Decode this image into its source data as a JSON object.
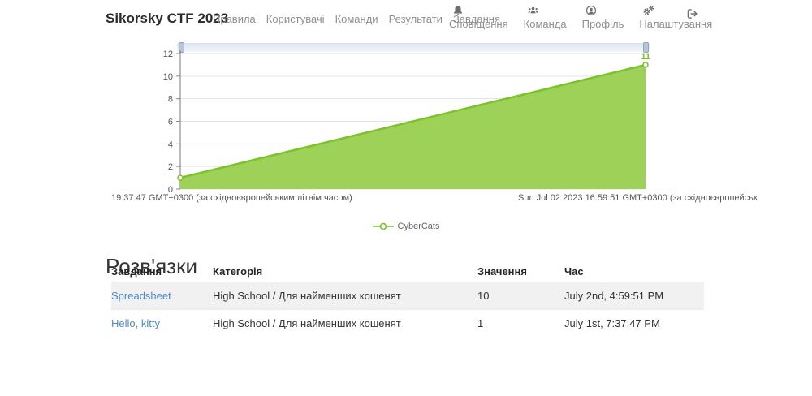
{
  "navbar": {
    "brand": "Sikorsky CTF 2023",
    "links": [
      "Правила",
      "Користувачі",
      "Команди",
      "Результати",
      "Завдання"
    ],
    "icon_items": [
      {
        "label": "Сповіщення",
        "icon": "bell-icon"
      },
      {
        "label": "Команда",
        "icon": "team-icon"
      },
      {
        "label": "Профіль",
        "icon": "profile-icon"
      },
      {
        "label": "Налаштування",
        "icon": "settings-icon"
      }
    ],
    "logout": {
      "icon": "logout-icon"
    }
  },
  "chart_data": {
    "type": "area",
    "title": "",
    "series": [
      {
        "name": "CyberCats",
        "line_color": "#7cc22c",
        "fill_color": "#9ed158",
        "points": [
          {
            "x": "Jul 01 2023 19:37:47",
            "y": 1
          },
          {
            "x": "Jul 02 2023 16:59:51",
            "y": 11
          }
        ]
      }
    ],
    "ylim": [
      0,
      12
    ],
    "y_ticks": [
      0,
      2,
      4,
      6,
      8,
      10,
      12
    ],
    "grid": true,
    "x_axis_labels": {
      "start": "19:37:47 GMT+0300 (за східноєвропейським літнім часом)",
      "end": "Sun Jul 02 2023 16:59:51 GMT+0300 (за східноєвропейськ"
    },
    "end_point_label": "11",
    "legend": {
      "position": "bottom-center",
      "entries": [
        "CyberCats"
      ]
    }
  },
  "solves": {
    "heading": "Розв'язки",
    "columns": [
      "Завдання",
      "Категорія",
      "Значення",
      "Час"
    ],
    "rows": [
      {
        "task": "Spreadsheet",
        "category": "High School / Для найменших кошенят",
        "value": "10",
        "time": "July 2nd, 4:59:51 PM"
      },
      {
        "task": "Hello, kitty",
        "category": "High School / Для найменших кошенят",
        "value": "1",
        "time": "July 1st, 7:37:47 PM"
      }
    ]
  }
}
